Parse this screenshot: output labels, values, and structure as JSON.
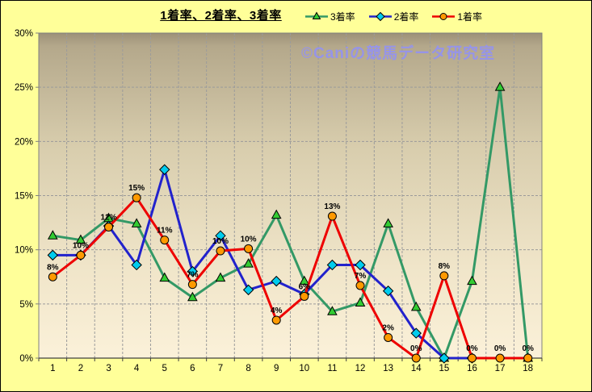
{
  "title": "1着率、2着率、3着率",
  "watermark": "©Caniの競馬データ研究室",
  "colors": {
    "background": "#FFFF99",
    "plot_border": "#808080",
    "axis_line": "#404040",
    "gridline": "#9B9B9B",
    "plot_gradient": [
      "#9C9078",
      "#B4A88B",
      "#D8CDAD",
      "#F0E5C9",
      "#FBF1D9"
    ],
    "watermark": "#9694E8",
    "text": "#000000"
  },
  "chart_data": {
    "type": "line",
    "title": "1着率、2着率、3着率",
    "categories": [
      "1",
      "2",
      "3",
      "4",
      "5",
      "6",
      "7",
      "8",
      "9",
      "10",
      "11",
      "12",
      "13",
      "14",
      "15",
      "16",
      "17",
      "18"
    ],
    "xlabel": "",
    "ylabel": "",
    "ylim": [
      0,
      30
    ],
    "ytick_step": 5,
    "ytick_suffix": "%",
    "grid": "dashed-both",
    "legend_position": "top-right",
    "series": [
      {
        "name": "3着率",
        "key": "third-place-rate",
        "line_color": "#339966",
        "marker": "triangle",
        "marker_fill": "#33CC33",
        "values": [
          11.3,
          10.9,
          12.9,
          12.4,
          7.4,
          5.6,
          7.4,
          8.7,
          13.2,
          7.1,
          4.3,
          5.1,
          12.4,
          4.7,
          0,
          7.1,
          25.0,
          0
        ]
      },
      {
        "name": "2着率",
        "key": "second-place-rate",
        "line_color": "#2222CC",
        "marker": "diamond",
        "marker_fill": "#00CCEE",
        "values": [
          9.5,
          9.5,
          12.2,
          8.6,
          17.4,
          8.0,
          11.3,
          6.3,
          7.1,
          5.9,
          8.6,
          8.6,
          6.2,
          2.3,
          0,
          0,
          null,
          null
        ]
      },
      {
        "name": "1着率",
        "key": "first-place-rate",
        "line_color": "#EE0000",
        "marker": "circle",
        "marker_fill": "#FF9900",
        "values": [
          7.5,
          9.5,
          12.1,
          14.8,
          10.9,
          6.8,
          9.9,
          10.1,
          3.5,
          5.7,
          13.1,
          6.7,
          1.9,
          0,
          7.6,
          0,
          0,
          0
        ],
        "data_labels": [
          "8%",
          "10%",
          "12%",
          "15%",
          "11%",
          "7%",
          "10%",
          "10%",
          "4%",
          "6%",
          "13%",
          "7%",
          "2%",
          "0%",
          "8%",
          "0%",
          "0%",
          "0%"
        ]
      }
    ]
  }
}
